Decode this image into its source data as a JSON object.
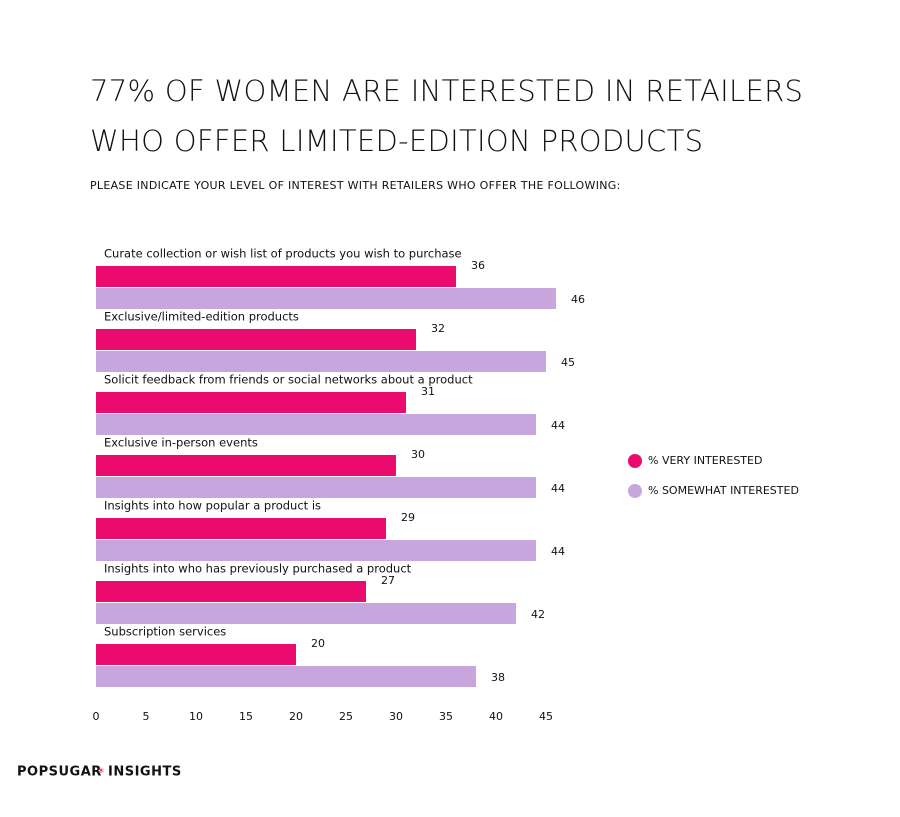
{
  "chart_data": {
    "type": "bar",
    "orientation": "horizontal",
    "title": [
      "77% OF WOMEN ARE INTERESTED IN RETAILERS",
      "WHO OFFER LIMITED-EDITION PRODUCTS"
    ],
    "subtitle": "PLEASE INDICATE YOUR LEVEL OF INTEREST WITH RETAILERS WHO OFFER THE FOLLOWING:",
    "categories": [
      "Curate collection or wish list of products you wish to purchase",
      "Exclusive/limited-edition products",
      "Solicit feedback from friends or social networks about a product",
      "Exclusive in-person events",
      "Insights into how popular a product is",
      "Insights into who has previously purchased a product",
      "Subscription services"
    ],
    "series": [
      {
        "name": "% VERY INTERESTED",
        "color": "#eb0a6d",
        "values": [
          36,
          32,
          31,
          30,
          29,
          27,
          20
        ]
      },
      {
        "name": "% SOMEWHAT INTERESTED",
        "color": "#c9a5dd",
        "values": [
          46,
          45,
          44,
          44,
          44,
          42,
          38
        ]
      }
    ],
    "xlim": [
      0,
      45
    ],
    "xticks": [
      0,
      5,
      10,
      15,
      20,
      25,
      30,
      35,
      40,
      45
    ],
    "legend": "right",
    "brand": [
      "POPSUGAR",
      "INSIGHTS"
    ]
  }
}
